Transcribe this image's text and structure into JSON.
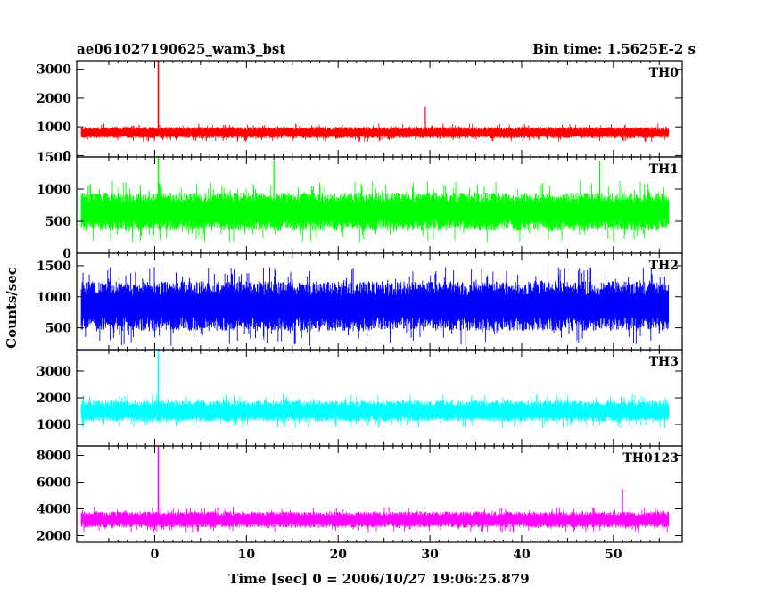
{
  "chart_data": {
    "type": "line",
    "title_left": "ae061027190625_wam3_bst",
    "title_right": "Bin time: 1.5625E-2 s",
    "xlabel": "Time [sec] 0 = 2006/10/27 19:06:25.879",
    "ylabel": "Counts/sec",
    "xlim": [
      -8.5,
      57.5
    ],
    "x_ticks": [
      0,
      10,
      20,
      30,
      40,
      50
    ],
    "x_tick_labels": [
      "0",
      "10",
      "20",
      "30",
      "40",
      "50"
    ],
    "x_data_range": [
      -8.0,
      56.0
    ],
    "panels": [
      {
        "name": "TH0",
        "color": "#ff0000",
        "ylim": [
          -50,
          3300
        ],
        "y_ticks": [
          0,
          1000,
          2000,
          3000
        ],
        "y_tick_labels": [
          "0",
          "1000",
          "2000",
          "3000"
        ],
        "baseline": 800,
        "noise_spread": 200,
        "spike": {
          "x": 0.4,
          "y": 3300
        },
        "occasional_peaks": [
          {
            "x": 29.5,
            "y": 1700
          }
        ]
      },
      {
        "name": "TH1",
        "color": "#00ff00",
        "ylim": [
          0,
          1500
        ],
        "y_ticks": [
          0,
          500,
          1000,
          1500
        ],
        "y_tick_labels": [
          "0",
          "500",
          "1000",
          "1500"
        ],
        "baseline": 650,
        "noise_spread": 300,
        "spike": {
          "x": 0.4,
          "y": 1500
        },
        "occasional_peaks": [
          {
            "x": 13.0,
            "y": 1450
          },
          {
            "x": 48.5,
            "y": 1450
          }
        ]
      },
      {
        "name": "TH2",
        "color": "#0000ff",
        "ylim": [
          150,
          1700
        ],
        "y_ticks": [
          500,
          1000,
          1500
        ],
        "y_tick_labels": [
          "500",
          "1000",
          "1500"
        ],
        "baseline": 850,
        "noise_spread": 400,
        "spike": null,
        "occasional_peaks": []
      },
      {
        "name": "TH3",
        "color": "#00ffff",
        "ylim": [
          200,
          3800
        ],
        "y_ticks": [
          1000,
          2000,
          3000
        ],
        "y_tick_labels": [
          "1000",
          "2000",
          "3000"
        ],
        "baseline": 1500,
        "noise_spread": 400,
        "spike": {
          "x": 0.4,
          "y": 3800
        },
        "occasional_peaks": []
      },
      {
        "name": "TH0123",
        "color": "#ff00ff",
        "ylim": [
          1500,
          8700
        ],
        "y_ticks": [
          2000,
          4000,
          6000,
          8000
        ],
        "y_tick_labels": [
          "2000",
          "4000",
          "6000",
          "8000"
        ],
        "baseline": 3200,
        "noise_spread": 600,
        "spike": {
          "x": 0.4,
          "y": 8700
        },
        "occasional_peaks": [
          {
            "x": 51.0,
            "y": 5500
          }
        ]
      }
    ]
  }
}
